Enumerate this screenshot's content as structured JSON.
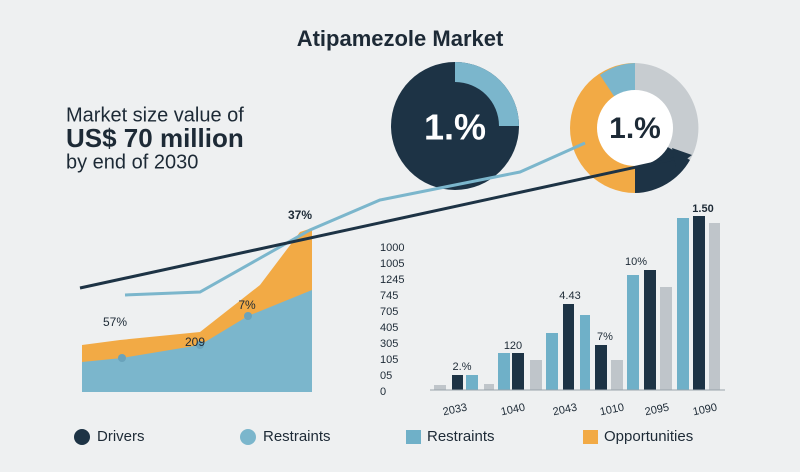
{
  "title": "Atipamezole Market",
  "headline": {
    "line1": "Market size value of",
    "line2": "US$ 70 million",
    "line3": "by end of 2030"
  },
  "donuts": [
    {
      "label": "1.%"
    },
    {
      "label": "1.%"
    }
  ],
  "area_panel": {
    "labels": [
      "57%",
      "209",
      "7%",
      "37%"
    ]
  },
  "bar_panel": {
    "axis_labels": [
      "1000",
      "1005",
      "1245",
      "745",
      "705",
      "405",
      "305",
      "105",
      "05",
      "0"
    ],
    "categories": [
      "2033",
      "1040",
      "2043",
      "1010",
      "2095",
      "1090"
    ],
    "bar_labels": [
      "2.%",
      "120",
      "4.43",
      "7%",
      "10%",
      "1.50"
    ]
  },
  "legend": [
    "Drivers",
    "Restraints",
    "Restraints",
    "Opportunities"
  ]
}
